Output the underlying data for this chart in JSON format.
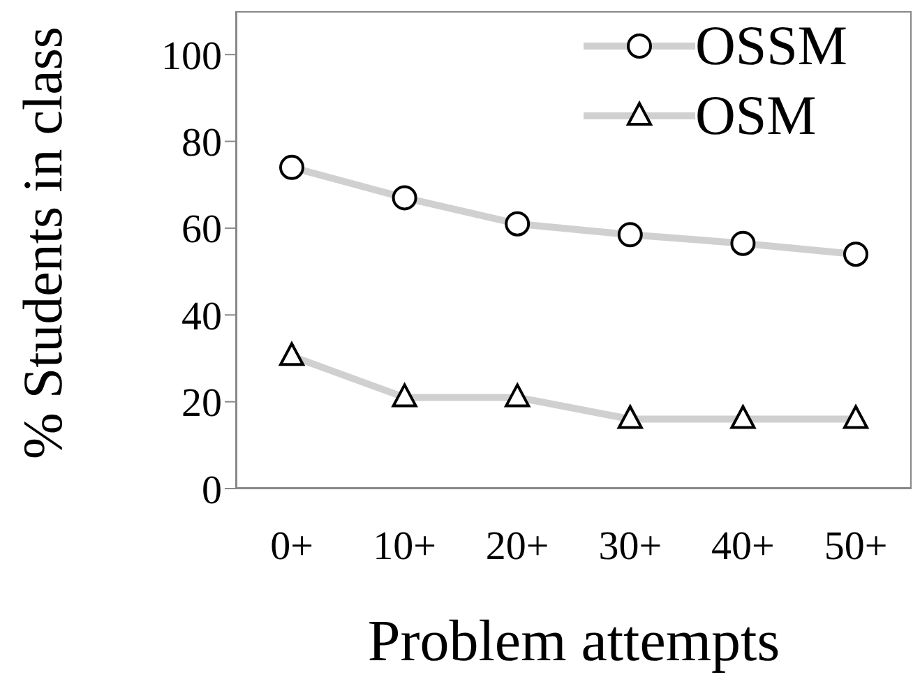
{
  "chart_data": {
    "type": "line",
    "xlabel": "Problem attempts",
    "ylabel": "% Students in class",
    "categories": [
      "0+",
      "10+",
      "20+",
      "30+",
      "40+",
      "50+"
    ],
    "series": [
      {
        "name": "OSSM",
        "color": "#d0d0d0",
        "marker": "circle",
        "values": [
          74,
          67,
          61,
          58.5,
          56.5,
          54
        ]
      },
      {
        "name": "OSM",
        "color": "#d0d0d0",
        "marker": "triangle",
        "values": [
          30.5,
          21,
          21,
          16,
          16,
          16
        ]
      }
    ],
    "ylim": [
      0,
      110
    ],
    "yticks": [
      0,
      20,
      40,
      60,
      80,
      100
    ],
    "grid": false,
    "legend": "top right",
    "line_style": "solid"
  }
}
